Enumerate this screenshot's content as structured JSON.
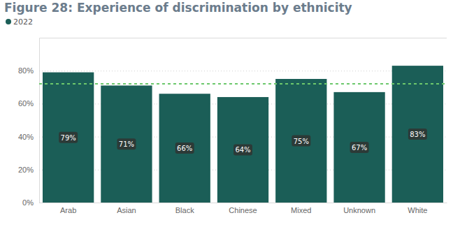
{
  "chart_data": {
    "type": "bar",
    "title": "Figure 28: Experience of discrimination by ethnicity",
    "categories": [
      "Arab",
      "Asian",
      "Black",
      "Chinese",
      "Mixed",
      "Unknown",
      "White"
    ],
    "series": [
      {
        "name": "2022",
        "color": "#1b5e57",
        "values": [
          79,
          71,
          66,
          64,
          75,
          67,
          83
        ],
        "value_labels": [
          "79%",
          "71%",
          "66%",
          "64%",
          "75%",
          "67%",
          "83%"
        ]
      }
    ],
    "ylim": [
      0,
      100
    ],
    "yticks": [
      {
        "value": 0,
        "label": "0%"
      },
      {
        "value": 20,
        "label": "20%"
      },
      {
        "value": 40,
        "label": "40%"
      },
      {
        "value": 60,
        "label": "60%"
      },
      {
        "value": 80,
        "label": "80%"
      }
    ],
    "grid": true,
    "data_labels": true,
    "legend": "top-left",
    "reference_line": 72
  }
}
